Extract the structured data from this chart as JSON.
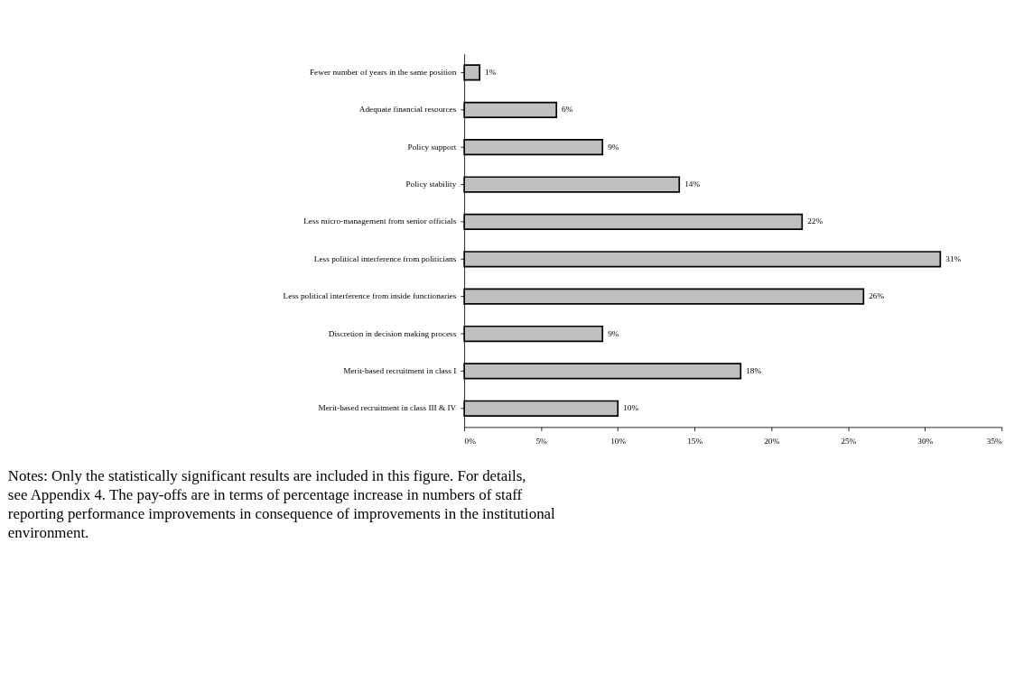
{
  "chart_data": {
    "type": "bar",
    "orientation": "horizontal",
    "categories": [
      "Fewer number of years in the same position",
      "Adequate financial resources",
      "Policy support",
      "Policy stability",
      "Less micro-management from senior officials",
      "Less political interference from politicians",
      "Less political interference from inside functionaries",
      "Discretion in decision making process",
      "Merit-based recruitment in class I",
      "Merit-based recruitment in class III & IV"
    ],
    "values": [
      1,
      6,
      9,
      14,
      22,
      31,
      26,
      9,
      18,
      10
    ],
    "value_labels": [
      "1%",
      "6%",
      "9%",
      "14%",
      "22%",
      "31%",
      "26%",
      "9%",
      "18%",
      "10%"
    ],
    "color": "#c0c0c0",
    "xlim": [
      0,
      35
    ],
    "xticks": [
      {
        "value": 0,
        "label": "0%"
      },
      {
        "value": 5,
        "label": "5%"
      },
      {
        "value": 10,
        "label": "10%"
      },
      {
        "value": 15,
        "label": "15%"
      },
      {
        "value": 20,
        "label": "20%"
      },
      {
        "value": 25,
        "label": "25%"
      },
      {
        "value": 30,
        "label": "30%"
      },
      {
        "value": 35,
        "label": "35%"
      }
    ],
    "grid": false,
    "annotations": [
      "Notes: Only the statistically significant results are included in this figure. For details, see Appendix 4. The pay-offs are in terms of percentage increase in numbers of staff reporting performance improvements in consequence of improvements in the institutional environment."
    ]
  }
}
